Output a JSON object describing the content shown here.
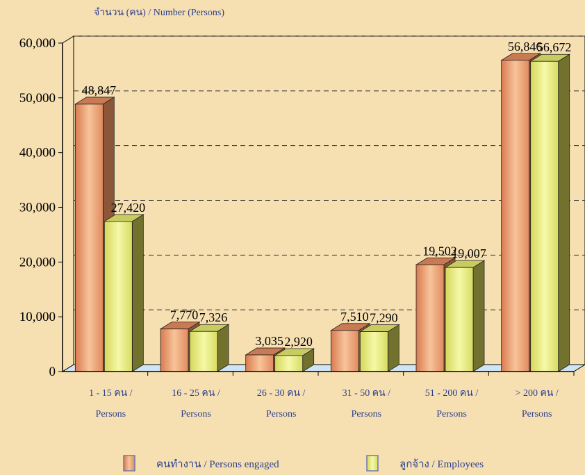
{
  "chart_data": {
    "type": "bar3d",
    "y_axis_label": "จำนวน (คน) / Number (Persons)",
    "categories": [
      [
        "1 - 15 คน /",
        "Persons"
      ],
      [
        "16 - 25 คน /",
        "Persons"
      ],
      [
        "26 - 30 คน /",
        "Persons"
      ],
      [
        "31 - 50 คน /",
        "Persons"
      ],
      [
        "51 - 200 คน /",
        "Persons"
      ],
      [
        "> 200 คน /",
        "Persons"
      ]
    ],
    "series": [
      {
        "name": "คนทำงาน / Persons engaged",
        "color": "#e9956a",
        "values": [
          48847,
          7770,
          3035,
          7510,
          19502,
          56846
        ],
        "value_labels": [
          "48,847",
          "7,770",
          "3,035",
          "7,510",
          "19,502",
          "56,846"
        ]
      },
      {
        "name": "ลูกจ้าง / Employees",
        "color": "#e6ec7a",
        "values": [
          27420,
          7326,
          2920,
          7290,
          19007,
          56672
        ],
        "value_labels": [
          "27,420",
          "7,326",
          "2,920",
          "7,290",
          "19,007",
          "56,672"
        ]
      }
    ],
    "ylim": [
      0,
      60000
    ],
    "yticks": [
      0,
      {
        "value": 10000,
        "label": "10,000"
      },
      {
        "value": 20000,
        "label": "20,000"
      },
      {
        "value": 30000,
        "label": "30,000"
      },
      {
        "value": 40000,
        "label": "40,000"
      },
      {
        "value": 50000,
        "label": "50,000"
      },
      {
        "value": 60000,
        "label": "60,000"
      }
    ],
    "grid": true
  }
}
